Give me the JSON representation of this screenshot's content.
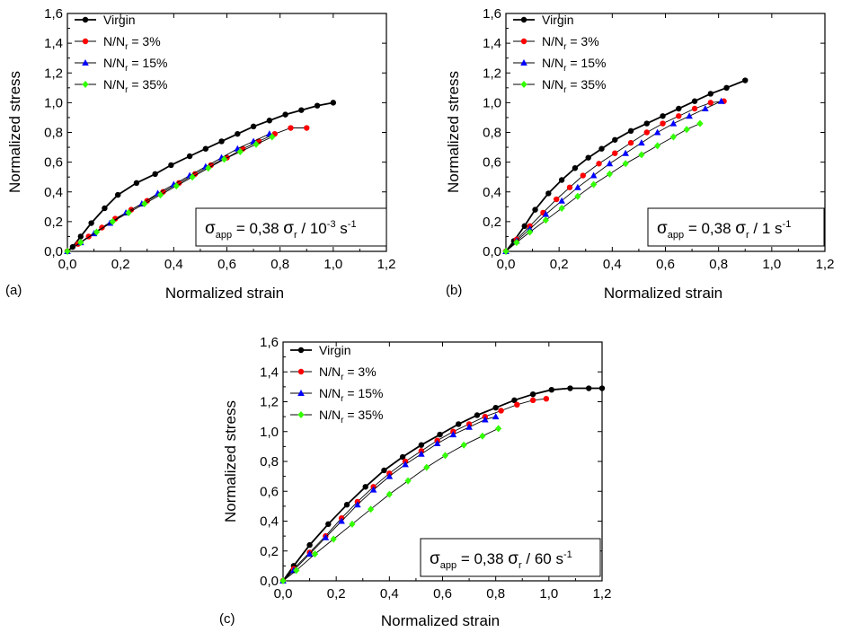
{
  "chart_data": [
    {
      "type": "line",
      "panel_label": "(a)",
      "xlabel": "Normalized strain",
      "ylabel": "Normalized stress",
      "xlim": [
        0,
        1.2
      ],
      "ylim": [
        0,
        1.6
      ],
      "xticks": [
        "0,0",
        "0,2",
        "0,4",
        "0,6",
        "0,8",
        "1,0",
        "1,2"
      ],
      "yticks": [
        "0,0",
        "0,2",
        "0,4",
        "0,6",
        "0,8",
        "1,0",
        "1,2",
        "1,4",
        "1,6"
      ],
      "legend_position": "top-left",
      "annotation": {
        "symbol": "σ",
        "sub": "app",
        "middle": " = 0,38 ",
        "symbol2": "σ",
        "sub2": "r",
        "tail": " / 10",
        "sup": "-3",
        "tail2": " s",
        "sup2": "-1"
      },
      "series": [
        {
          "name": "Virgin",
          "legend_text": "Virgin",
          "legend_sub": "",
          "legend_tail": "",
          "color": "#000000",
          "marker": "circle",
          "x": [
            0.0,
            0.02,
            0.05,
            0.09,
            0.14,
            0.19,
            0.26,
            0.33,
            0.39,
            0.46,
            0.52,
            0.58,
            0.64,
            0.7,
            0.76,
            0.82,
            0.88,
            0.94,
            1.0
          ],
          "y": [
            0.0,
            0.03,
            0.1,
            0.19,
            0.29,
            0.38,
            0.46,
            0.52,
            0.58,
            0.64,
            0.69,
            0.74,
            0.79,
            0.84,
            0.88,
            0.92,
            0.95,
            0.98,
            1.0
          ]
        },
        {
          "name": "N/Nr = 3%",
          "legend_text": "N/N",
          "legend_sub": "r",
          "legend_tail": " = 3%",
          "color": "#ff0000",
          "marker": "circle",
          "x": [
            0.0,
            0.04,
            0.08,
            0.13,
            0.18,
            0.24,
            0.3,
            0.36,
            0.42,
            0.48,
            0.54,
            0.6,
            0.66,
            0.72,
            0.78,
            0.84,
            0.9
          ],
          "y": [
            0.0,
            0.05,
            0.1,
            0.16,
            0.22,
            0.28,
            0.34,
            0.4,
            0.46,
            0.52,
            0.58,
            0.63,
            0.69,
            0.74,
            0.79,
            0.83,
            0.83
          ]
        },
        {
          "name": "N/Nr = 15%",
          "legend_text": "N/N",
          "legend_sub": "r",
          "legend_tail": " = 15%",
          "color": "#0000ff",
          "marker": "triangle",
          "x": [
            0.0,
            0.05,
            0.1,
            0.16,
            0.22,
            0.28,
            0.34,
            0.4,
            0.46,
            0.52,
            0.58,
            0.64,
            0.7,
            0.76
          ],
          "y": [
            0.0,
            0.06,
            0.12,
            0.19,
            0.26,
            0.32,
            0.39,
            0.45,
            0.51,
            0.57,
            0.63,
            0.69,
            0.74,
            0.79
          ]
        },
        {
          "name": "N/Nr = 35%",
          "legend_text": "N/N",
          "legend_sub": "r",
          "legend_tail": " = 35%",
          "color": "#33ff00",
          "marker": "diamond",
          "x": [
            0.0,
            0.05,
            0.11,
            0.17,
            0.23,
            0.29,
            0.35,
            0.41,
            0.47,
            0.53,
            0.59,
            0.65,
            0.71,
            0.77
          ],
          "y": [
            0.0,
            0.06,
            0.13,
            0.2,
            0.26,
            0.32,
            0.38,
            0.44,
            0.5,
            0.56,
            0.62,
            0.67,
            0.72,
            0.77
          ]
        }
      ]
    },
    {
      "type": "line",
      "panel_label": "(b)",
      "xlabel": "Normalized strain",
      "ylabel": "Normalized stress",
      "xlim": [
        0,
        1.2
      ],
      "ylim": [
        0,
        1.6
      ],
      "xticks": [
        "0,0",
        "0,2",
        "0,4",
        "0,6",
        "0,8",
        "1,0",
        "1,2"
      ],
      "yticks": [
        "0,0",
        "0,2",
        "0,4",
        "0,6",
        "0,8",
        "1,0",
        "1,2",
        "1,4",
        "1,6"
      ],
      "legend_position": "top-left",
      "annotation": {
        "symbol": "σ",
        "sub": "app",
        "middle": " = 0,38 ",
        "symbol2": "σ",
        "sub2": "r",
        "tail": " / 1 s",
        "sup": "-1",
        "tail2": "",
        "sup2": ""
      },
      "series": [
        {
          "name": "Virgin",
          "legend_text": "Virgin",
          "legend_sub": "",
          "legend_tail": "",
          "color": "#000000",
          "marker": "circle",
          "x": [
            0.0,
            0.03,
            0.07,
            0.11,
            0.16,
            0.21,
            0.26,
            0.31,
            0.36,
            0.41,
            0.47,
            0.53,
            0.59,
            0.65,
            0.71,
            0.77,
            0.83,
            0.9
          ],
          "y": [
            0.0,
            0.07,
            0.17,
            0.28,
            0.39,
            0.48,
            0.56,
            0.63,
            0.69,
            0.75,
            0.81,
            0.86,
            0.91,
            0.96,
            1.01,
            1.06,
            1.1,
            1.15
          ]
        },
        {
          "name": "N/Nr = 3%",
          "legend_text": "N/N",
          "legend_sub": "r",
          "legend_tail": " = 3%",
          "color": "#ff0000",
          "marker": "circle",
          "x": [
            0.0,
            0.04,
            0.09,
            0.14,
            0.19,
            0.24,
            0.29,
            0.35,
            0.41,
            0.47,
            0.53,
            0.59,
            0.65,
            0.71,
            0.77,
            0.82
          ],
          "y": [
            0.0,
            0.08,
            0.17,
            0.26,
            0.35,
            0.43,
            0.51,
            0.59,
            0.66,
            0.73,
            0.8,
            0.86,
            0.91,
            0.96,
            1.0,
            1.01
          ]
        },
        {
          "name": "N/Nr = 15%",
          "legend_text": "N/N",
          "legend_sub": "r",
          "legend_tail": " = 15%",
          "color": "#0000ff",
          "marker": "triangle",
          "x": [
            0.0,
            0.04,
            0.09,
            0.15,
            0.21,
            0.27,
            0.33,
            0.39,
            0.45,
            0.51,
            0.57,
            0.63,
            0.69,
            0.75,
            0.81
          ],
          "y": [
            0.0,
            0.07,
            0.15,
            0.25,
            0.34,
            0.43,
            0.51,
            0.59,
            0.66,
            0.73,
            0.8,
            0.86,
            0.91,
            0.96,
            1.01
          ]
        },
        {
          "name": "N/Nr = 35%",
          "legend_text": "N/N",
          "legend_sub": "r",
          "legend_tail": " = 35%",
          "color": "#33ff00",
          "marker": "diamond",
          "x": [
            0.0,
            0.04,
            0.09,
            0.15,
            0.21,
            0.27,
            0.33,
            0.39,
            0.45,
            0.51,
            0.57,
            0.63,
            0.68,
            0.73
          ],
          "y": [
            0.0,
            0.06,
            0.13,
            0.21,
            0.29,
            0.37,
            0.45,
            0.52,
            0.59,
            0.65,
            0.71,
            0.77,
            0.82,
            0.86
          ]
        }
      ]
    },
    {
      "type": "line",
      "panel_label": "(c)",
      "xlabel": "Normalized strain",
      "ylabel": "Normalized stress",
      "xlim": [
        0,
        1.2
      ],
      "ylim": [
        0,
        1.6
      ],
      "xticks": [
        "0,0",
        "0,2",
        "0,4",
        "0,6",
        "0,8",
        "1,0",
        "1,2"
      ],
      "yticks": [
        "0,0",
        "0,2",
        "0,4",
        "0,6",
        "0,8",
        "1,0",
        "1,2",
        "1,4",
        "1,6"
      ],
      "legend_position": "top-left",
      "annotation": {
        "symbol": "σ",
        "sub": "app",
        "middle": " = 0,38 ",
        "symbol2": "σ",
        "sub2": "r",
        "tail": " / 60 s",
        "sup": "-1",
        "tail2": "",
        "sup2": ""
      },
      "series": [
        {
          "name": "Virgin",
          "legend_text": "Virgin",
          "legend_sub": "",
          "legend_tail": "",
          "color": "#000000",
          "marker": "circle",
          "x": [
            0.0,
            0.04,
            0.1,
            0.17,
            0.24,
            0.31,
            0.38,
            0.45,
            0.52,
            0.59,
            0.66,
            0.73,
            0.8,
            0.87,
            0.94,
            1.01,
            1.08,
            1.15,
            1.2
          ],
          "y": [
            0.0,
            0.1,
            0.24,
            0.38,
            0.51,
            0.63,
            0.74,
            0.83,
            0.91,
            0.98,
            1.05,
            1.11,
            1.16,
            1.21,
            1.25,
            1.28,
            1.29,
            1.29,
            1.29
          ]
        },
        {
          "name": "N/Nr = 3%",
          "legend_text": "N/N",
          "legend_sub": "r",
          "legend_tail": " = 3%",
          "color": "#ff0000",
          "marker": "circle",
          "x": [
            0.0,
            0.04,
            0.1,
            0.16,
            0.22,
            0.28,
            0.34,
            0.4,
            0.46,
            0.52,
            0.58,
            0.64,
            0.7,
            0.76,
            0.82,
            0.88,
            0.94,
            0.99
          ],
          "y": [
            0.0,
            0.08,
            0.19,
            0.3,
            0.42,
            0.53,
            0.63,
            0.72,
            0.8,
            0.87,
            0.94,
            1.0,
            1.05,
            1.1,
            1.14,
            1.18,
            1.21,
            1.22
          ]
        },
        {
          "name": "N/Nr = 15%",
          "legend_text": "N/N",
          "legend_sub": "r",
          "legend_tail": " = 15%",
          "color": "#0000ff",
          "marker": "triangle",
          "x": [
            0.0,
            0.04,
            0.1,
            0.16,
            0.22,
            0.28,
            0.34,
            0.4,
            0.46,
            0.52,
            0.58,
            0.64,
            0.7,
            0.76,
            0.8
          ],
          "y": [
            0.0,
            0.07,
            0.18,
            0.29,
            0.4,
            0.51,
            0.61,
            0.7,
            0.78,
            0.85,
            0.92,
            0.98,
            1.03,
            1.08,
            1.1
          ]
        },
        {
          "name": "N/Nr = 35%",
          "legend_text": "N/N",
          "legend_sub": "r",
          "legend_tail": " = 35%",
          "color": "#33ff00",
          "marker": "diamond",
          "x": [
            0.0,
            0.05,
            0.12,
            0.19,
            0.26,
            0.33,
            0.4,
            0.47,
            0.54,
            0.61,
            0.68,
            0.75,
            0.81
          ],
          "y": [
            0.0,
            0.07,
            0.18,
            0.28,
            0.38,
            0.48,
            0.58,
            0.67,
            0.76,
            0.84,
            0.91,
            0.97,
            1.02
          ]
        }
      ]
    }
  ]
}
